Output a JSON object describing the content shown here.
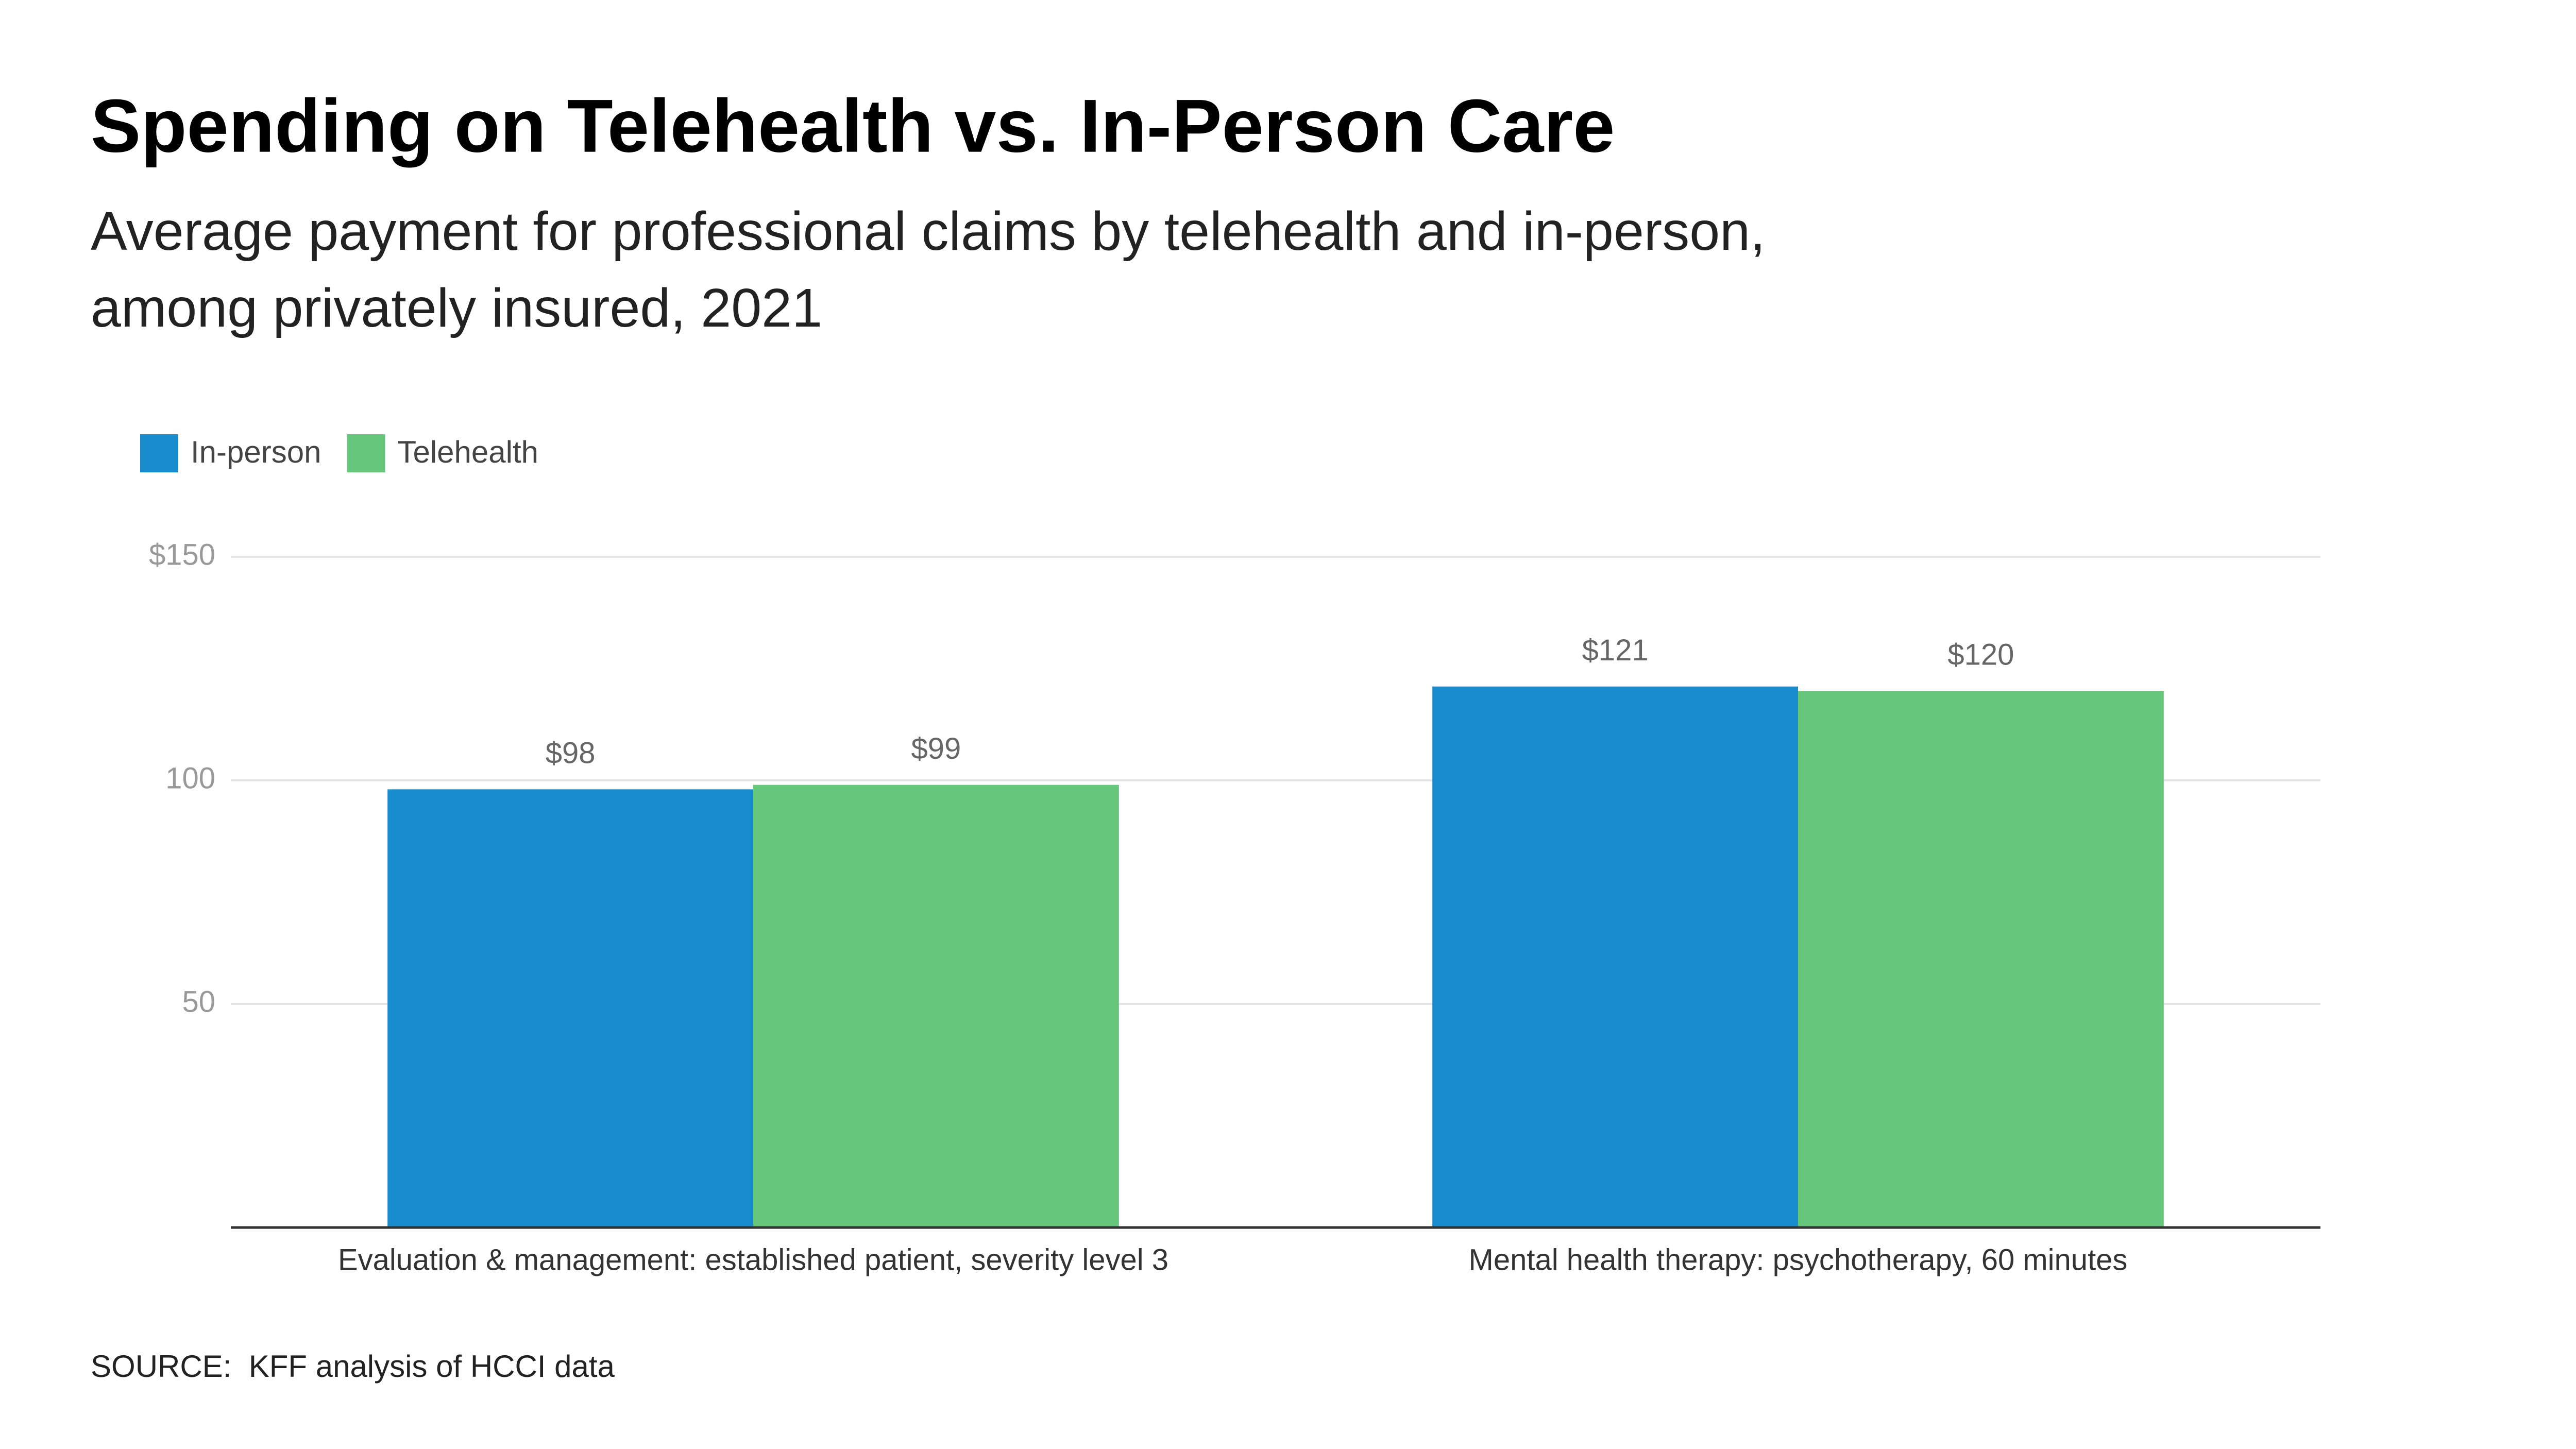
{
  "chart_data": {
    "type": "bar",
    "title": "Spending on Telehealth vs. In-Person Care",
    "subtitle": [
      "Average payment for professional claims by telehealth and in-person,",
      "among privately insured, 2021"
    ],
    "categories": [
      "Evaluation & management: established patient, severity level 3",
      "Mental health therapy: psychotherapy, 60 minutes"
    ],
    "series": [
      {
        "name": "In-person",
        "color": "#188ccc",
        "values": [
          98,
          121
        ],
        "value_labels": [
          "$98",
          "$121"
        ]
      },
      {
        "name": "Telehealth",
        "color": "#65c67c",
        "values": [
          99,
          120
        ],
        "value_labels": [
          "$99",
          "$120"
        ]
      }
    ],
    "ylim": [
      0,
      150
    ],
    "yticks": [
      {
        "value": 150,
        "label": "$150"
      },
      100,
      50
    ],
    "grid": true,
    "legend": "top-left",
    "source": "SOURCE:  KFF analysis of HCCI data"
  }
}
